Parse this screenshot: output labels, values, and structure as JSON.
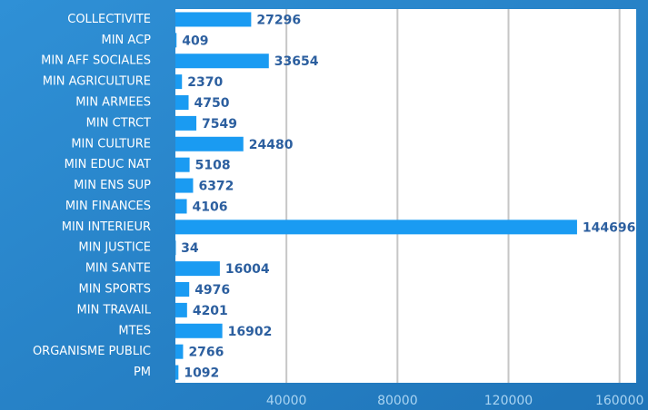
{
  "chart_data": {
    "type": "bar",
    "orientation": "horizontal",
    "categories": [
      "COLLECTIVITE",
      "MIN ACP",
      "MIN AFF SOCIALES",
      "MIN AGRICULTURE",
      "MIN ARMEES",
      "MIN CTRCT",
      "MIN CULTURE",
      "MIN EDUC NAT",
      "MIN ENS SUP",
      "MIN FINANCES",
      "MIN INTERIEUR",
      "MIN JUSTICE",
      "MIN SANTE",
      "MIN SPORTS",
      "MIN TRAVAIL",
      "MTES",
      "ORGANISME PUBLIC",
      "PM"
    ],
    "values": [
      27296,
      409,
      33654,
      2370,
      4750,
      7549,
      24480,
      5108,
      6372,
      4106,
      144696,
      34,
      16004,
      4976,
      4201,
      16902,
      2766,
      1092
    ],
    "color": "#1a9bf2",
    "xlim": [
      0,
      166000
    ],
    "xticks": [
      40000,
      80000,
      120000,
      160000
    ],
    "grid": true
  }
}
